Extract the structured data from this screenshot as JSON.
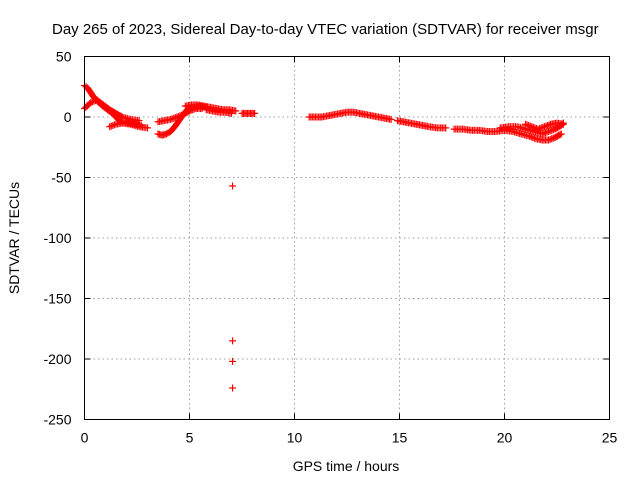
{
  "chart_data": {
    "type": "scatter",
    "title": "Day 265 of 2023, Sidereal Day-to-day VTEC variation (SDTVAR) for receiver msgr",
    "xlabel": "GPS time / hours",
    "ylabel": "SDTVAR / TECUs",
    "xlim": [
      0,
      25
    ],
    "ylim": [
      -250,
      50
    ],
    "xticks": [
      0,
      5,
      10,
      15,
      20,
      25
    ],
    "yticks": [
      50,
      0,
      -50,
      -100,
      -150,
      -200,
      -250
    ],
    "grid": true,
    "marker": "+",
    "color": "#ff0000",
    "series": [
      {
        "name": "SDTVAR",
        "tracks": [
          [
            [
              0.0,
              26
            ],
            [
              0.15,
              24
            ],
            [
              0.3,
              20
            ],
            [
              0.5,
              15
            ],
            [
              0.8,
              10
            ],
            [
              1.1,
              6
            ],
            [
              1.4,
              2
            ],
            [
              1.6,
              -2
            ],
            [
              1.8,
              -4
            ],
            [
              2.1,
              -5
            ],
            [
              2.4,
              -6
            ],
            [
              2.7,
              -7
            ]
          ],
          [
            [
              0.0,
              7
            ],
            [
              0.3,
              12
            ],
            [
              0.6,
              14
            ],
            [
              0.9,
              10
            ],
            [
              1.2,
              6
            ],
            [
              1.5,
              3
            ],
            [
              1.8,
              0
            ],
            [
              2.2,
              -2
            ],
            [
              2.6,
              -3
            ]
          ],
          [
            [
              1.2,
              -8
            ],
            [
              1.5,
              -6
            ],
            [
              1.8,
              -5
            ],
            [
              2.2,
              -6
            ],
            [
              2.6,
              -8
            ],
            [
              3.0,
              -9
            ]
          ],
          [
            [
              3.5,
              -14
            ],
            [
              3.7,
              -15
            ],
            [
              3.9,
              -14
            ],
            [
              4.1,
              -12
            ],
            [
              4.3,
              -8
            ],
            [
              4.5,
              -3
            ],
            [
              4.7,
              2
            ],
            [
              4.9,
              6
            ],
            [
              5.2,
              8
            ],
            [
              5.5,
              9
            ],
            [
              5.8,
              8
            ]
          ],
          [
            [
              3.5,
              -4
            ],
            [
              3.8,
              -3
            ],
            [
              4.1,
              -2
            ],
            [
              4.4,
              0
            ],
            [
              4.7,
              2
            ],
            [
              5.0,
              5
            ],
            [
              5.3,
              7
            ],
            [
              5.6,
              7
            ]
          ],
          [
            [
              4.8,
              9
            ],
            [
              5.1,
              10
            ],
            [
              5.4,
              10
            ],
            [
              5.7,
              9
            ],
            [
              6.0,
              8
            ],
            [
              6.3,
              7
            ],
            [
              6.6,
              6
            ],
            [
              6.9,
              6
            ],
            [
              7.2,
              5
            ]
          ],
          [
            [
              5.8,
              6
            ],
            [
              6.1,
              5
            ],
            [
              6.4,
              4
            ],
            [
              6.7,
              4
            ],
            [
              7.0,
              3
            ]
          ],
          [
            [
              7.5,
              3
            ],
            [
              7.7,
              3
            ],
            [
              7.9,
              3
            ],
            [
              8.1,
              3
            ]
          ],
          [
            [
              10.7,
              0
            ],
            [
              11.0,
              0
            ],
            [
              11.3,
              0
            ],
            [
              11.6,
              1
            ],
            [
              11.9,
              2
            ],
            [
              12.2,
              3
            ],
            [
              12.5,
              4
            ],
            [
              12.8,
              4
            ],
            [
              13.1,
              3
            ],
            [
              13.4,
              2
            ],
            [
              13.7,
              1
            ],
            [
              14.0,
              0
            ],
            [
              14.3,
              -1
            ],
            [
              14.6,
              -2
            ]
          ],
          [
            [
              14.9,
              -3
            ],
            [
              15.2,
              -4
            ],
            [
              15.5,
              -5
            ],
            [
              15.8,
              -6
            ],
            [
              16.1,
              -7
            ],
            [
              16.4,
              -8
            ],
            [
              16.8,
              -9
            ],
            [
              17.2,
              -9
            ]
          ],
          [
            [
              17.6,
              -10
            ],
            [
              18.0,
              -10
            ],
            [
              18.4,
              -11
            ],
            [
              18.8,
              -11
            ],
            [
              19.2,
              -12
            ],
            [
              19.6,
              -12
            ],
            [
              20.0,
              -11
            ],
            [
              20.4,
              -12
            ],
            [
              20.8,
              -14
            ],
            [
              21.2,
              -16
            ],
            [
              21.5,
              -18
            ],
            [
              21.8,
              -19
            ],
            [
              22.1,
              -19
            ],
            [
              22.4,
              -17
            ],
            [
              22.7,
              -14
            ]
          ],
          [
            [
              19.8,
              -9
            ],
            [
              20.2,
              -8
            ],
            [
              20.6,
              -8
            ],
            [
              21.0,
              -10
            ],
            [
              21.4,
              -12
            ],
            [
              21.8,
              -14
            ],
            [
              22.1,
              -12
            ],
            [
              22.4,
              -10
            ],
            [
              22.7,
              -7
            ],
            [
              22.8,
              -5
            ]
          ],
          [
            [
              21.0,
              -6
            ],
            [
              21.3,
              -8
            ],
            [
              21.6,
              -10
            ],
            [
              21.9,
              -8
            ],
            [
              22.2,
              -6
            ],
            [
              22.5,
              -5
            ],
            [
              22.8,
              -6
            ]
          ]
        ],
        "outliers": [
          [
            7.05,
            -57
          ],
          [
            7.05,
            -185
          ],
          [
            7.05,
            -202
          ],
          [
            7.05,
            -224
          ]
        ]
      }
    ]
  }
}
